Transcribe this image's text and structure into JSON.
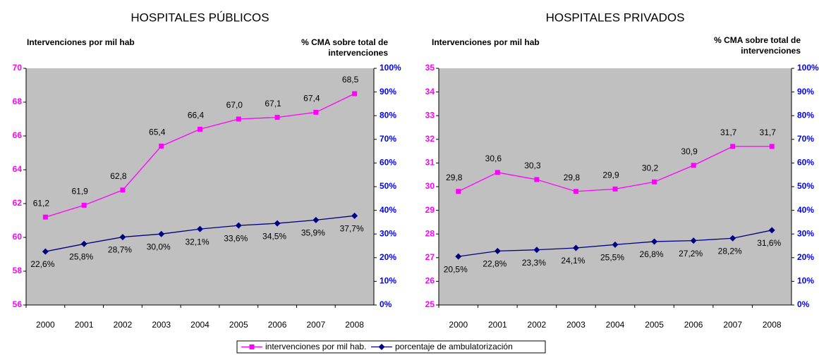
{
  "chart_data": [
    {
      "type": "line",
      "title": "HOSPITALES PÚBLICOS",
      "ylabel": "Intervenciones por mil hab",
      "y2label": "% CMA sobre total de intervenciones",
      "categories": [
        "2000",
        "2001",
        "2002",
        "2003",
        "2004",
        "2005",
        "2006",
        "2007",
        "2008"
      ],
      "ylim": [
        56,
        70
      ],
      "yticks": [
        56,
        58,
        60,
        62,
        64,
        66,
        68,
        70
      ],
      "ytick_color": "#ff00ff",
      "y2lim": [
        0,
        100
      ],
      "y2ticks": [
        {
          "value": 0,
          "label": "0%"
        },
        {
          "value": 10,
          "label": "10%"
        },
        {
          "value": 20,
          "label": "20%"
        },
        {
          "value": 30,
          "label": "30%"
        },
        {
          "value": 40,
          "label": "40%"
        },
        {
          "value": 50,
          "label": "50%"
        },
        {
          "value": 60,
          "label": "60%"
        },
        {
          "value": 70,
          "label": "70%"
        },
        {
          "value": 80,
          "label": "80%"
        },
        {
          "value": 90,
          "label": "90%"
        },
        {
          "value": 100,
          "label": "100%"
        }
      ],
      "y2tick_color": "#0000ff",
      "plot_background": "#c0c0c0",
      "series": [
        {
          "name": "intervenciones por mil hab.",
          "color": "#ff00ff",
          "marker": "square",
          "values": [
            61.2,
            61.9,
            62.8,
            65.4,
            66.4,
            67.0,
            67.1,
            67.4,
            68.5
          ],
          "value_labels": [
            "61,2",
            "61,9",
            "62,8",
            "65,4",
            "66,4",
            "67,0",
            "67,1",
            "67,4",
            "68,5"
          ]
        },
        {
          "name": "porcentaje de ambulatorización",
          "color": "#000080",
          "marker": "diamond",
          "axis": "y2",
          "values": [
            22.6,
            25.8,
            28.7,
            30.0,
            32.1,
            33.6,
            34.5,
            35.9,
            37.7
          ],
          "value_labels": [
            "22,6%",
            "25,8%",
            "28,7%",
            "30,0%",
            "32,1%",
            "33,6%",
            "34,5%",
            "35,9%",
            "37,7%"
          ]
        }
      ]
    },
    {
      "type": "line",
      "title": "HOSPITALES PRIVADOS",
      "ylabel": "Intervenciones por mil hab",
      "y2label": "% CMA sobre total de intervenciones",
      "categories": [
        "2000",
        "2001",
        "2002",
        "2003",
        "2004",
        "2005",
        "2006",
        "2007",
        "2008"
      ],
      "ylim": [
        25,
        35
      ],
      "yticks": [
        25,
        26,
        27,
        28,
        29,
        30,
        31,
        32,
        33,
        34,
        35
      ],
      "ytick_color": "#ff00ff",
      "y2lim": [
        0,
        100
      ],
      "y2ticks": [
        {
          "value": 0,
          "label": "0%"
        },
        {
          "value": 10,
          "label": "10%"
        },
        {
          "value": 20,
          "label": "20%"
        },
        {
          "value": 30,
          "label": "30%"
        },
        {
          "value": 40,
          "label": "40%"
        },
        {
          "value": 50,
          "label": "50%"
        },
        {
          "value": 60,
          "label": "60%"
        },
        {
          "value": 70,
          "label": "70%"
        },
        {
          "value": 80,
          "label": "80%"
        },
        {
          "value": 90,
          "label": "90%"
        },
        {
          "value": 100,
          "label": "100%"
        }
      ],
      "y2tick_color": "#0000ff",
      "plot_background": "#c0c0c0",
      "series": [
        {
          "color": "#ff00ff",
          "marker": "square",
          "values": [
            29.8,
            30.6,
            30.3,
            29.8,
            29.9,
            30.2,
            30.9,
            31.7,
            31.7
          ],
          "value_labels": [
            "29,8",
            "30,6",
            "30,3",
            "29,8",
            "29,9",
            "30,2",
            "30,9",
            "31,7",
            "31,7"
          ]
        },
        {
          "color": "#000080",
          "marker": "diamond",
          "axis": "y2",
          "values": [
            20.5,
            22.8,
            23.3,
            24.1,
            25.5,
            26.8,
            27.2,
            28.2,
            31.6
          ],
          "value_labels": [
            "20,5%",
            "22,8%",
            "23,3%",
            "24,1%",
            "25,5%",
            "26,8%",
            "27,2%",
            "28,2%",
            "31,6%"
          ]
        }
      ]
    }
  ]
}
